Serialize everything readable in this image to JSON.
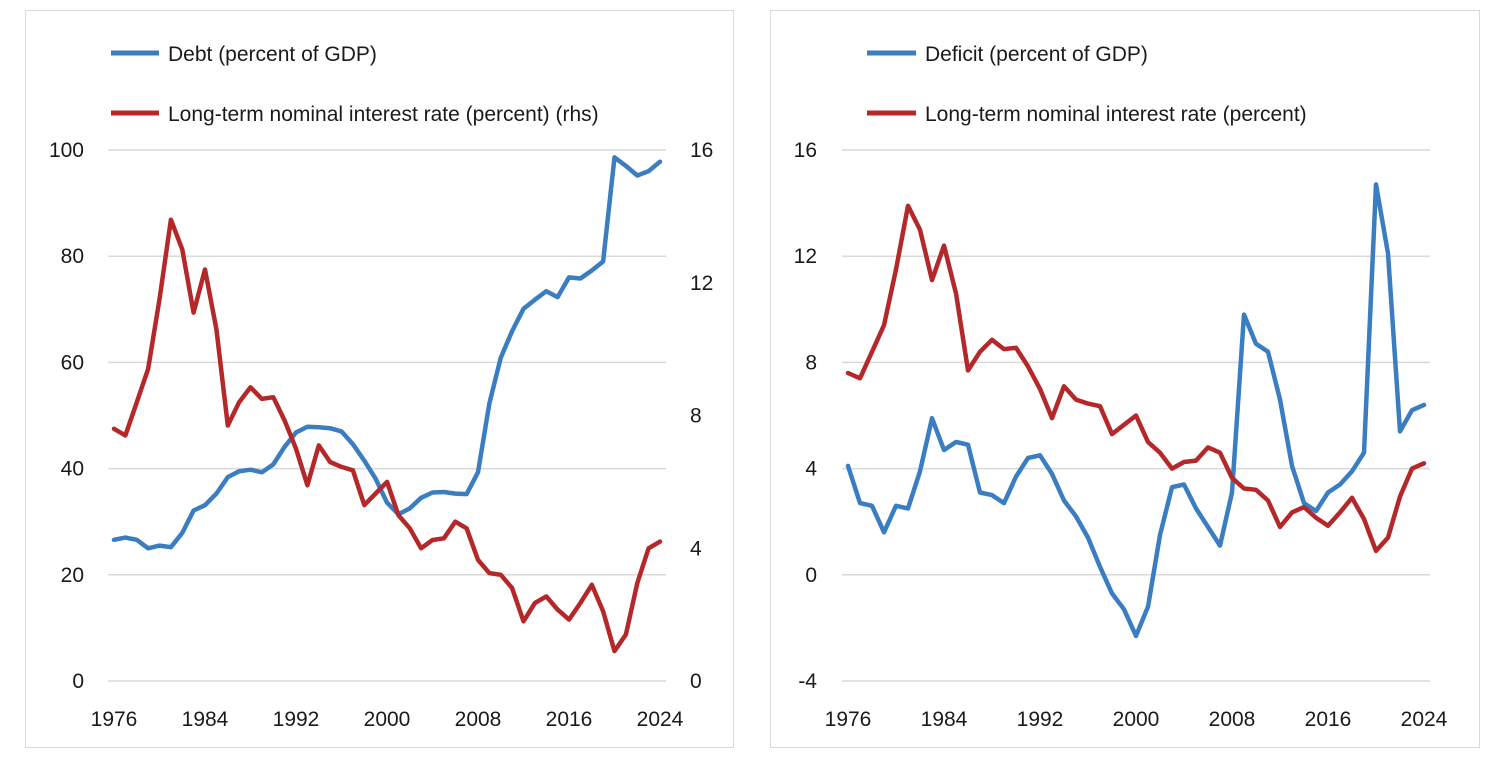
{
  "colors": {
    "blue": "#3a7dc0",
    "red": "#b5282a",
    "grid": "#d9d9d9"
  },
  "chart_data": [
    {
      "type": "line",
      "title": "",
      "x": [
        1976,
        1977,
        1978,
        1979,
        1980,
        1981,
        1982,
        1983,
        1984,
        1985,
        1986,
        1987,
        1988,
        1989,
        1990,
        1991,
        1992,
        1993,
        1994,
        1995,
        1996,
        1997,
        1998,
        1999,
        2000,
        2001,
        2002,
        2003,
        2004,
        2005,
        2006,
        2007,
        2008,
        2009,
        2010,
        2011,
        2012,
        2013,
        2014,
        2015,
        2016,
        2017,
        2018,
        2019,
        2020,
        2021,
        2022,
        2023,
        2024
      ],
      "xlim": [
        1976,
        2024
      ],
      "xticks": [
        "1976",
        "1984",
        "1992",
        "2000",
        "2008",
        "2016",
        "2024"
      ],
      "ylim": [
        0,
        100
      ],
      "yticks": [
        "0",
        "20",
        "40",
        "60",
        "80",
        "100"
      ],
      "y2lim": [
        0,
        16
      ],
      "y2ticks": [
        "0",
        "4",
        "8",
        "12",
        "16"
      ],
      "legend": [
        "Debt (percent of GDP)",
        "Long-term nominal interest rate (percent) (rhs)"
      ],
      "series": [
        {
          "name": "Debt (percent of GDP)",
          "axis": "left",
          "color": "blue",
          "values": [
            26.6,
            27.0,
            26.6,
            25.0,
            25.5,
            25.2,
            27.9,
            32.1,
            33.1,
            35.3,
            38.4,
            39.5,
            39.8,
            39.3,
            40.8,
            44.1,
            46.8,
            47.9,
            47.8,
            47.6,
            47.0,
            44.6,
            41.5,
            38.1,
            33.6,
            31.4,
            32.5,
            34.5,
            35.5,
            35.6,
            35.3,
            35.2,
            39.3,
            52.3,
            60.9,
            65.9,
            70.1,
            71.8,
            73.4,
            72.3,
            76.0,
            75.8,
            77.3,
            79.0,
            98.6,
            97.0,
            95.2,
            96.0,
            97.8
          ]
        },
        {
          "name": "Long-term nominal interest rate (percent) (rhs)",
          "axis": "right",
          "color": "red",
          "values": [
            7.6,
            7.4,
            8.4,
            9.4,
            11.5,
            13.9,
            13.0,
            11.1,
            12.4,
            10.6,
            7.7,
            8.4,
            8.85,
            8.5,
            8.55,
            7.85,
            7.0,
            5.9,
            7.1,
            6.6,
            6.45,
            6.35,
            5.3,
            5.65,
            6.0,
            5.0,
            4.6,
            4.0,
            4.25,
            4.3,
            4.8,
            4.6,
            3.65,
            3.25,
            3.2,
            2.8,
            1.8,
            2.35,
            2.55,
            2.15,
            1.85,
            2.35,
            2.9,
            2.1,
            0.9,
            1.4,
            2.95,
            4.0,
            4.2
          ]
        }
      ]
    },
    {
      "type": "line",
      "title": "",
      "x": [
        1976,
        1977,
        1978,
        1979,
        1980,
        1981,
        1982,
        1983,
        1984,
        1985,
        1986,
        1987,
        1988,
        1989,
        1990,
        1991,
        1992,
        1993,
        1994,
        1995,
        1996,
        1997,
        1998,
        1999,
        2000,
        2001,
        2002,
        2003,
        2004,
        2005,
        2006,
        2007,
        2008,
        2009,
        2010,
        2011,
        2012,
        2013,
        2014,
        2015,
        2016,
        2017,
        2018,
        2019,
        2020,
        2021,
        2022,
        2023,
        2024
      ],
      "xlim": [
        1976,
        2024
      ],
      "xticks": [
        "1976",
        "1984",
        "1992",
        "2000",
        "2008",
        "2016",
        "2024"
      ],
      "ylim": [
        -4,
        16
      ],
      "yticks": [
        "-4",
        "0",
        "4",
        "8",
        "12",
        "16"
      ],
      "legend": [
        "Deficit (percent of GDP)",
        "Long-term nominal interest rate (percent)"
      ],
      "series": [
        {
          "name": "Deficit (percent of GDP)",
          "axis": "left",
          "color": "blue",
          "values": [
            4.1,
            2.7,
            2.6,
            1.6,
            2.6,
            2.5,
            3.9,
            5.9,
            4.7,
            5.0,
            4.9,
            3.1,
            3.0,
            2.7,
            3.7,
            4.4,
            4.5,
            3.8,
            2.8,
            2.2,
            1.4,
            0.3,
            -0.7,
            -1.3,
            -2.3,
            -1.2,
            1.5,
            3.3,
            3.4,
            2.5,
            1.8,
            1.1,
            3.1,
            9.8,
            8.7,
            8.4,
            6.6,
            4.1,
            2.7,
            2.4,
            3.1,
            3.4,
            3.9,
            4.6,
            14.7,
            12.1,
            5.4,
            6.2,
            6.4
          ]
        },
        {
          "name": "Long-term nominal interest rate (percent)",
          "axis": "left",
          "color": "red",
          "values": [
            7.6,
            7.4,
            8.4,
            9.4,
            11.5,
            13.9,
            13.0,
            11.1,
            12.4,
            10.6,
            7.7,
            8.4,
            8.85,
            8.5,
            8.55,
            7.85,
            7.0,
            5.9,
            7.1,
            6.6,
            6.45,
            6.35,
            5.3,
            5.65,
            6.0,
            5.0,
            4.6,
            4.0,
            4.25,
            4.3,
            4.8,
            4.6,
            3.65,
            3.25,
            3.2,
            2.8,
            1.8,
            2.35,
            2.55,
            2.15,
            1.85,
            2.35,
            2.9,
            2.1,
            0.9,
            1.4,
            2.95,
            4.0,
            4.2
          ]
        }
      ]
    }
  ]
}
